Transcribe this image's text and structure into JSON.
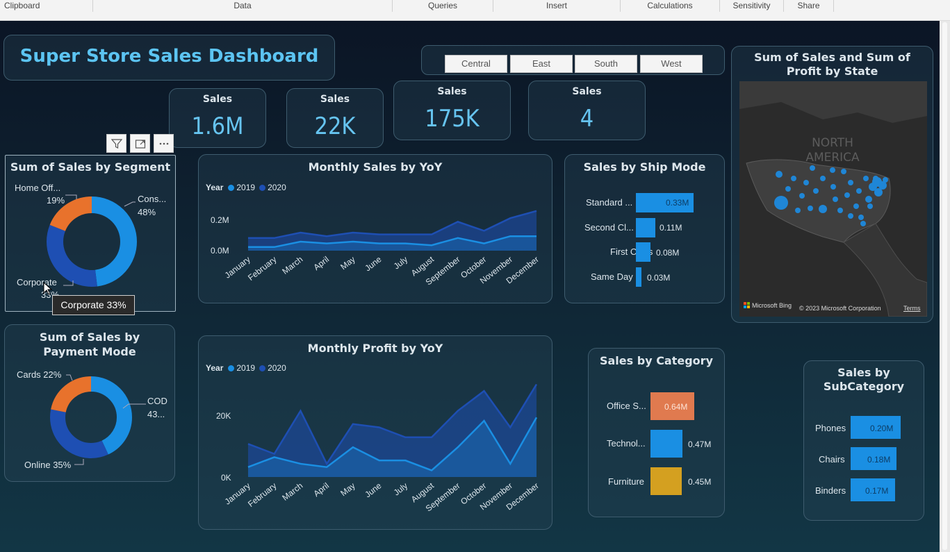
{
  "ribbon": {
    "groups": [
      "Clipboard",
      "Data",
      "Queries",
      "Insert",
      "Calculations",
      "Sensitivity",
      "Share"
    ]
  },
  "title": "Super Store Sales Dashboard",
  "region_slicer": {
    "options": [
      "Central",
      "East",
      "South",
      "West"
    ]
  },
  "kpis": [
    {
      "label": "Sales",
      "value": "1.6M"
    },
    {
      "label": "Sales",
      "value": "22K"
    },
    {
      "label": "Sales",
      "value": "175K"
    },
    {
      "label": "Sales",
      "value": "4"
    }
  ],
  "segment_chart": {
    "title": "Sum of Sales by Segment",
    "labels": {
      "home_office": "Home Off...",
      "home_office_pct": "19%",
      "consumer": "Cons...",
      "consumer_pct": "48%",
      "corporate": "Corporate",
      "corporate_pct": "33%"
    },
    "colors": {
      "consumer": "#1a8fe3",
      "corporate": "#1e4fb3",
      "home_office": "#e8722c"
    }
  },
  "tooltip": "Corporate 33%",
  "payment_chart": {
    "title": "Sum of Sales by Payment Mode",
    "labels": {
      "cards": "Cards 22%",
      "cod": "COD",
      "cod_pct": "43...",
      "online": "Online 35%"
    }
  },
  "monthly_sales": {
    "title": "Monthly Sales by YoY",
    "legend_title": "Year",
    "legend": [
      "2019",
      "2020"
    ],
    "y_ticks": [
      "0.2M",
      "0.0M"
    ]
  },
  "monthly_profit": {
    "title": "Monthly Profit by YoY",
    "legend_title": "Year",
    "legend": [
      "2019",
      "2020"
    ],
    "y_ticks": [
      "20K",
      "0K"
    ]
  },
  "months": [
    "January",
    "February",
    "March",
    "April",
    "May",
    "June",
    "July",
    "August",
    "September",
    "October",
    "November",
    "December"
  ],
  "ship_mode": {
    "title": "Sales by Ship Mode",
    "items": [
      {
        "label": "Standard ...",
        "value": "0.33M"
      },
      {
        "label": "Second Cl...",
        "value": "0.11M"
      },
      {
        "label": "First Class",
        "value": "0.08M"
      },
      {
        "label": "Same Day",
        "value": "0.03M"
      }
    ]
  },
  "category": {
    "title": "Sales by Category",
    "items": [
      {
        "label": "Office S...",
        "value": "0.64M",
        "color": "#e07a4f"
      },
      {
        "label": "Technol...",
        "value": "0.47M",
        "color": "#1a8fe3"
      },
      {
        "label": "Furniture",
        "value": "0.45M",
        "color": "#d4a020"
      }
    ]
  },
  "subcategory": {
    "title": "Sales by SubCategory",
    "items": [
      {
        "label": "Phones",
        "value": "0.20M"
      },
      {
        "label": "Chairs",
        "value": "0.18M"
      },
      {
        "label": "Binders",
        "value": "0.17M"
      }
    ]
  },
  "map": {
    "title": "Sum of Sales and Sum of Profit by State",
    "region_label": "NORTH AMERICA",
    "attribution": "Microsoft Bing",
    "copyright": "© 2023 Microsoft Corporation",
    "terms": "Terms"
  },
  "chart_data": [
    {
      "type": "area",
      "title": "Monthly Sales by YoY",
      "x": [
        "January",
        "February",
        "March",
        "April",
        "May",
        "June",
        "July",
        "August",
        "September",
        "October",
        "November",
        "December"
      ],
      "ylim": [
        0,
        0.3
      ],
      "series": [
        {
          "name": "2019",
          "values": [
            0.02,
            0.02,
            0.05,
            0.04,
            0.05,
            0.04,
            0.04,
            0.03,
            0.07,
            0.04,
            0.08,
            0.08
          ]
        },
        {
          "name": "2020",
          "values": [
            0.07,
            0.07,
            0.1,
            0.08,
            0.1,
            0.09,
            0.09,
            0.09,
            0.16,
            0.11,
            0.18,
            0.22
          ]
        }
      ]
    },
    {
      "type": "area",
      "title": "Monthly Profit by YoY",
      "x": [
        "January",
        "February",
        "March",
        "April",
        "May",
        "June",
        "July",
        "August",
        "September",
        "October",
        "November",
        "December"
      ],
      "ylim": [
        0,
        30
      ],
      "series": [
        {
          "name": "2019",
          "values": [
            3,
            6,
            4,
            3,
            9,
            5,
            5,
            2,
            9,
            17,
            4,
            18
          ]
        },
        {
          "name": "2020",
          "values": [
            10,
            7,
            20,
            4,
            16,
            15,
            12,
            12,
            20,
            26,
            15,
            28
          ]
        }
      ]
    }
  ]
}
